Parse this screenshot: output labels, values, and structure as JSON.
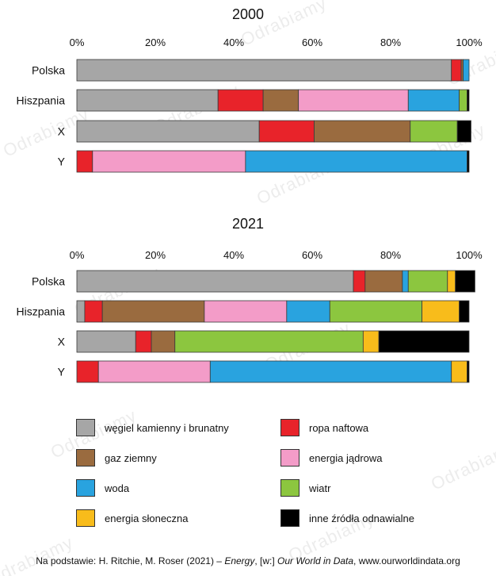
{
  "watermark": "Odrabiamy",
  "chart_data": [
    {
      "type": "bar",
      "orientation": "horizontal",
      "stacked": true,
      "title": "2000",
      "xlim": [
        0,
        100
      ],
      "tick_labels": [
        "0%",
        "20%",
        "40%",
        "60%",
        "80%",
        "100%"
      ],
      "categories": [
        "Polska",
        "Hiszpania",
        "X",
        "Y"
      ],
      "series": [
        {
          "name": "węgiel kamienny i brunatny",
          "values": [
            95.5,
            36,
            46.5,
            0
          ]
        },
        {
          "name": "ropa naftowa",
          "values": [
            2.5,
            11.5,
            14,
            4
          ]
        },
        {
          "name": "gaz ziemny",
          "values": [
            0.5,
            9,
            24.5,
            0
          ]
        },
        {
          "name": "energia jądrowa",
          "values": [
            0,
            28,
            0,
            39
          ]
        },
        {
          "name": "woda",
          "values": [
            1.5,
            13,
            0,
            56.5
          ]
        },
        {
          "name": "wiatr",
          "values": [
            0,
            2,
            12,
            0
          ]
        },
        {
          "name": "energia słoneczna",
          "values": [
            0,
            0,
            0,
            0
          ]
        },
        {
          "name": "inne źródła odnawialne",
          "values": [
            0,
            0.5,
            3.5,
            0.5
          ]
        }
      ]
    },
    {
      "type": "bar",
      "orientation": "horizontal",
      "stacked": true,
      "title": "2021",
      "xlim": [
        0,
        100
      ],
      "tick_labels": [
        "0%",
        "20%",
        "40%",
        "60%",
        "80%",
        "100%"
      ],
      "categories": [
        "Polska",
        "Hiszpania",
        "X",
        "Y"
      ],
      "series": [
        {
          "name": "węgiel kamienny i brunatny",
          "values": [
            70.5,
            2,
            15,
            0
          ]
        },
        {
          "name": "ropa naftowa",
          "values": [
            3,
            4.5,
            4,
            5.5
          ]
        },
        {
          "name": "gaz ziemny",
          "values": [
            9.5,
            26,
            6,
            0
          ]
        },
        {
          "name": "energia jądrowa",
          "values": [
            0,
            21,
            0,
            28.5
          ]
        },
        {
          "name": "woda",
          "values": [
            1.5,
            11,
            0,
            61.5
          ]
        },
        {
          "name": "wiatr",
          "values": [
            10,
            23.5,
            48,
            0
          ]
        },
        {
          "name": "energia słoneczna",
          "values": [
            2,
            9.5,
            4,
            4
          ]
        },
        {
          "name": "inne źródła odnawialne",
          "values": [
            5,
            2.5,
            23,
            0.5
          ]
        }
      ]
    }
  ],
  "legend": [
    {
      "label": "węgiel kamienny i brunatny",
      "color": "#a6a6a6"
    },
    {
      "label": "ropa naftowa",
      "color": "#e8232a"
    },
    {
      "label": "gaz ziemny",
      "color": "#9a6b3f"
    },
    {
      "label": "energia jądrowa",
      "color": "#f39cc8"
    },
    {
      "label": "woda",
      "color": "#29a3df"
    },
    {
      "label": "wiatr",
      "color": "#8cc63f"
    },
    {
      "label": "energia słoneczna",
      "color": "#f8bc1b"
    },
    {
      "label": "inne źródła odnawialne",
      "color": "#000000"
    }
  ],
  "source": {
    "prefix": "Na podstawie: H. Ritchie, M. Roser (2021) – ",
    "italic1": "Energy",
    "middle": ", [w:] ",
    "italic2": "Our World in Data",
    "suffix": ", www.ourworldindata.org"
  }
}
